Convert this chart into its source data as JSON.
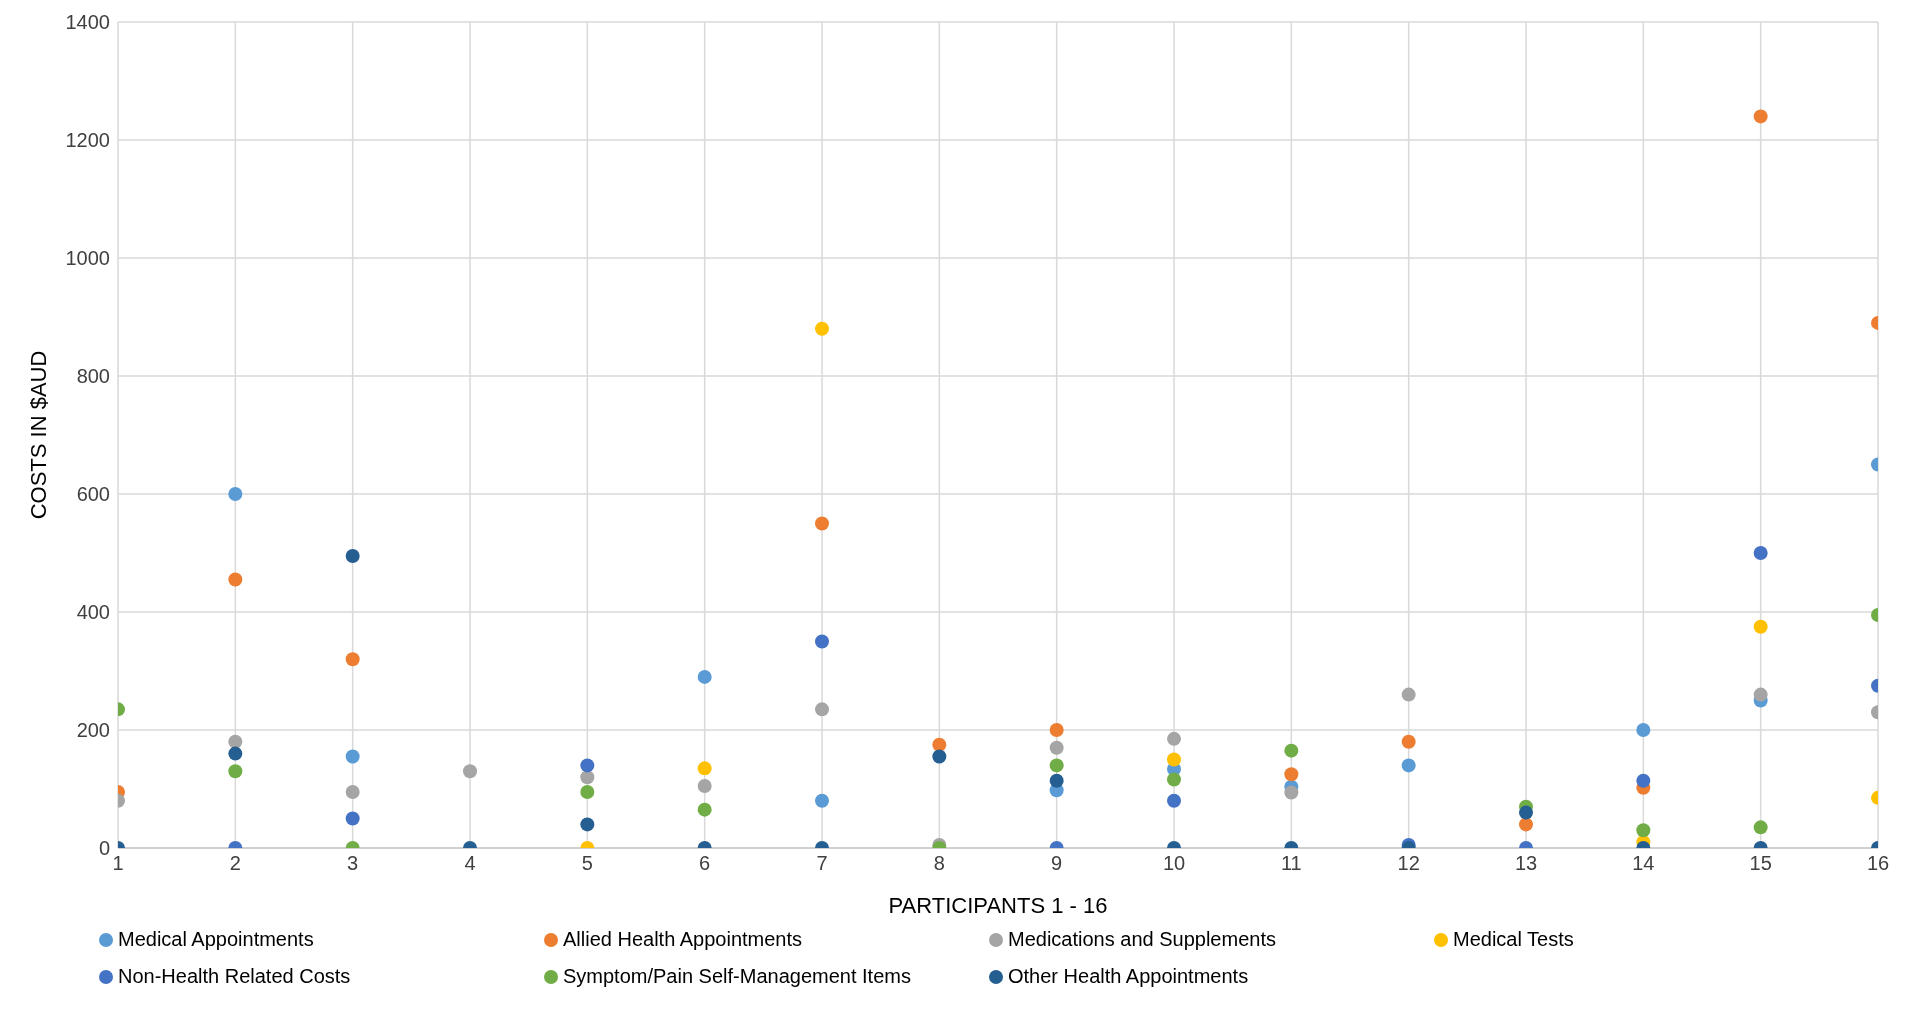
{
  "chart_data": {
    "type": "scatter",
    "xlabel": "PARTICIPANTS 1 - 16",
    "ylabel": "COSTS IN $AUD",
    "x": [
      1,
      2,
      3,
      4,
      5,
      6,
      7,
      8,
      9,
      10,
      11,
      12,
      13,
      14,
      15,
      16
    ],
    "xlim": [
      1,
      16
    ],
    "xticks": [
      1,
      2,
      3,
      4,
      5,
      6,
      7,
      8,
      9,
      10,
      11,
      12,
      13,
      14,
      15,
      16
    ],
    "ylim": [
      0,
      1400
    ],
    "yticks": [
      0,
      200,
      400,
      600,
      800,
      1000,
      1200,
      1400
    ],
    "grid": true,
    "legend": "bottom",
    "marker": "circle",
    "series": [
      {
        "name": "Medical Appointments",
        "color": "#5b9bd5",
        "values": [
          null,
          600,
          155,
          null,
          null,
          290,
          80,
          null,
          98,
          134,
          104,
          140,
          null,
          200,
          250,
          650
        ]
      },
      {
        "name": "Allied Health Appointments",
        "color": "#ed7d31",
        "values": [
          95,
          455,
          320,
          null,
          null,
          null,
          550,
          175,
          200,
          null,
          125,
          180,
          40,
          102,
          1240,
          890
        ]
      },
      {
        "name": "Medications and Supplements",
        "color": "#a5a5a5",
        "values": [
          80,
          180,
          95,
          130,
          120,
          105,
          235,
          5,
          170,
          185,
          94,
          260,
          null,
          null,
          260,
          230
        ]
      },
      {
        "name": "Medical Tests",
        "color": "#ffc000",
        "values": [
          null,
          null,
          null,
          null,
          0,
          135,
          880,
          null,
          null,
          150,
          null,
          null,
          null,
          10,
          375,
          85
        ]
      },
      {
        "name": "Non-Health Related Costs",
        "color": "#4472c4",
        "values": [
          null,
          0,
          50,
          null,
          140,
          null,
          350,
          null,
          0,
          80,
          null,
          5,
          0,
          114,
          500,
          275
        ]
      },
      {
        "name": "Symptom/Pain Self-Management Items",
        "color": "#70ad47",
        "values": [
          235,
          130,
          0,
          null,
          95,
          65,
          null,
          0,
          140,
          116,
          165,
          null,
          70,
          30,
          35,
          395
        ]
      },
      {
        "name": "Other Health Appointments",
        "color": "#255e91",
        "values": [
          0,
          160,
          495,
          0,
          40,
          0,
          0,
          155,
          114,
          0,
          0,
          0,
          60,
          0,
          0,
          0
        ]
      }
    ]
  }
}
